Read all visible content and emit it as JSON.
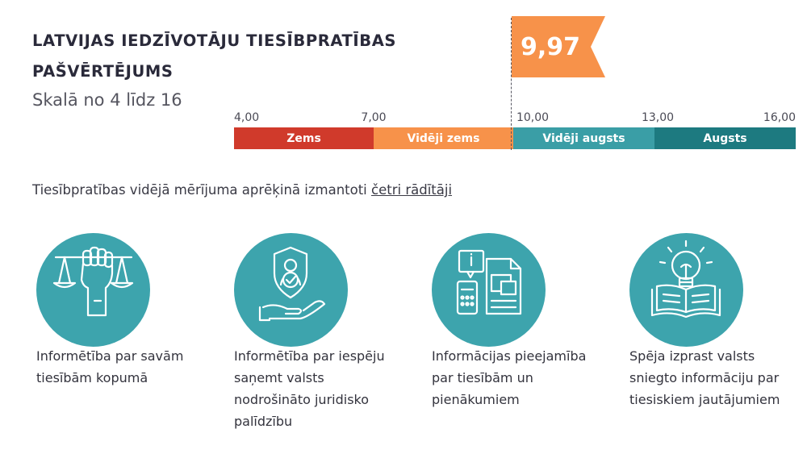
{
  "header": {
    "title": "LATVIJAS IEDZĪVOTĀJU TIESĪBPRATĪBAS PAŠVĒRTĒJUMS",
    "subtitle": "Skalā no 4 līdz 16"
  },
  "score": {
    "value_label": "9,97",
    "value": 9.97,
    "color": "#f7924a"
  },
  "scale": {
    "ticks": [
      "4,00",
      "7,00",
      "10,00",
      "13,00",
      "16,00"
    ],
    "segments": [
      {
        "label": "Zems",
        "from": 4,
        "to": 7,
        "color": "#d03a2b"
      },
      {
        "label": "Vidēji zems",
        "from": 7,
        "to": 10,
        "color": "#f7924a"
      },
      {
        "label": "Vidēji augsts",
        "from": 10,
        "to": 13,
        "color": "#3a9ea6"
      },
      {
        "label": "Augsts",
        "from": 13,
        "to": 16,
        "color": "#1d7a80"
      }
    ]
  },
  "intro": {
    "text": "Tiesībpratības vidējā mērījuma aprēķinā izmantoti ",
    "link": "četri rādītāji"
  },
  "indicators": [
    {
      "icon": "scales-fist-icon",
      "caption": "Informētība par savām tiesībām kopumā"
    },
    {
      "icon": "shield-hand-icon",
      "caption": "Informētība par iespēju saņemt valsts nodrošināto juridisko palīdzību"
    },
    {
      "icon": "documents-icon",
      "caption": "Informācijas pieejamība par tiesībām un pienākumiem"
    },
    {
      "icon": "lightbulb-book-icon",
      "caption": "Spēja izprast valsts sniegto informāciju par tiesiskiem jautājumiem"
    }
  ],
  "colors": {
    "circle": "#3da4ad",
    "icon_stroke": "#ffffff"
  }
}
